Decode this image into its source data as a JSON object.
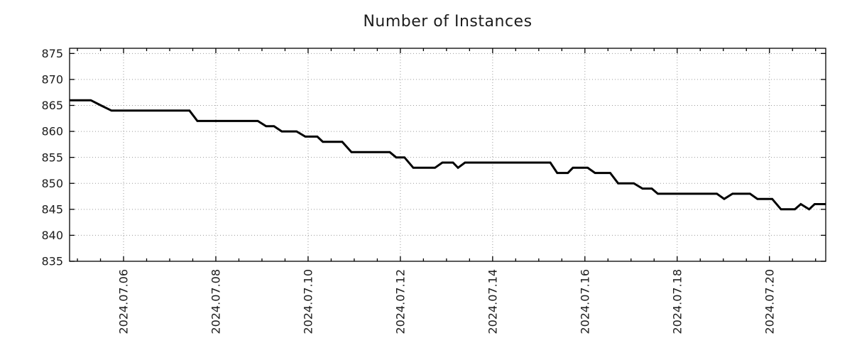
{
  "chart_data": {
    "type": "line",
    "title": "Number of Instances",
    "xlabel": "",
    "ylabel": "",
    "x_unit": "day of July 2024",
    "xlim": [
      4.83,
      21.22
    ],
    "ylim": [
      835,
      876
    ],
    "grid": "dotted, horizontal at every y tick, vertical at major x ticks",
    "legend": "none",
    "y_ticks": [
      835,
      840,
      845,
      850,
      855,
      860,
      865,
      870,
      875
    ],
    "x_major_ticks": [
      {
        "day": 6,
        "label": "2024.07.06"
      },
      {
        "day": 8,
        "label": "2024.07.08"
      },
      {
        "day": 10,
        "label": "2024.07.10"
      },
      {
        "day": 12,
        "label": "2024.07.12"
      },
      {
        "day": 14,
        "label": "2024.07.14"
      },
      {
        "day": 16,
        "label": "2024.07.16"
      },
      {
        "day": 18,
        "label": "2024.07.18"
      },
      {
        "day": 20,
        "label": "2024.07.20"
      }
    ],
    "x_minor_tick_step": 0.5,
    "colors": {
      "line": "#000000",
      "frame": "#000000",
      "grid": "#9a9a9a",
      "text": "#1c1c1c",
      "background": "#ffffff"
    },
    "series": [
      {
        "name": "Number of Instances",
        "points": [
          [
            4.83,
            866
          ],
          [
            5.29,
            866
          ],
          [
            5.51,
            865
          ],
          [
            5.74,
            864
          ],
          [
            7.43,
            864
          ],
          [
            7.6,
            862
          ],
          [
            8.91,
            862
          ],
          [
            9.09,
            861
          ],
          [
            9.26,
            861
          ],
          [
            9.43,
            860
          ],
          [
            9.75,
            860
          ],
          [
            9.94,
            859
          ],
          [
            10.2,
            859
          ],
          [
            10.32,
            858
          ],
          [
            10.74,
            858
          ],
          [
            10.94,
            856
          ],
          [
            11.77,
            856
          ],
          [
            11.91,
            855
          ],
          [
            12.09,
            855
          ],
          [
            12.28,
            853
          ],
          [
            12.75,
            853
          ],
          [
            12.91,
            854
          ],
          [
            13.14,
            854
          ],
          [
            13.25,
            853
          ],
          [
            13.4,
            854
          ],
          [
            15.25,
            854
          ],
          [
            15.4,
            852
          ],
          [
            15.63,
            852
          ],
          [
            15.74,
            853
          ],
          [
            16.06,
            853
          ],
          [
            16.22,
            852
          ],
          [
            16.55,
            852
          ],
          [
            16.72,
            850
          ],
          [
            17.06,
            850
          ],
          [
            17.25,
            849
          ],
          [
            17.45,
            849
          ],
          [
            17.58,
            848
          ],
          [
            18.86,
            848
          ],
          [
            19.02,
            847
          ],
          [
            19.2,
            848
          ],
          [
            19.58,
            848
          ],
          [
            19.74,
            847
          ],
          [
            20.06,
            847
          ],
          [
            20.25,
            845
          ],
          [
            20.55,
            845
          ],
          [
            20.68,
            846
          ],
          [
            20.86,
            845
          ],
          [
            20.98,
            846
          ],
          [
            21.22,
            846
          ]
        ]
      }
    ]
  }
}
